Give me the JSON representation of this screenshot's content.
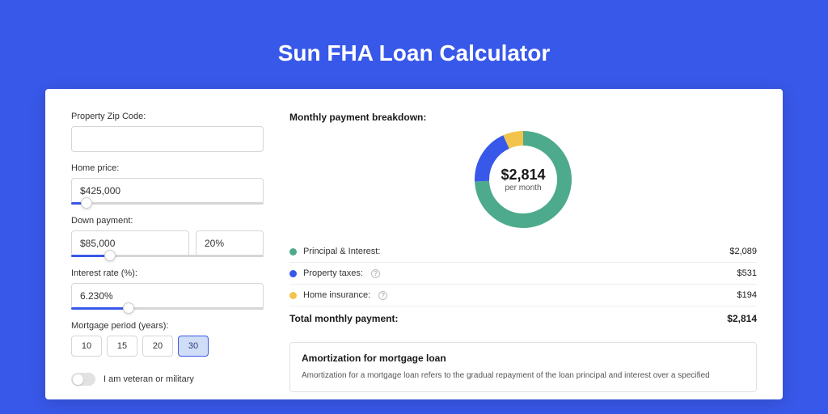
{
  "page_title": "Sun FHA Loan Calculator",
  "colors": {
    "page_bg": "#3858e9",
    "card_bg": "#ffffff",
    "accent": "#3858e9",
    "text_primary": "#1a1a1a",
    "text_secondary": "#555555",
    "border": "#d6d6d6"
  },
  "form": {
    "zip": {
      "label": "Property Zip Code:",
      "value": ""
    },
    "home_price": {
      "label": "Home price:",
      "value": "$425,000",
      "slider_pct": 8
    },
    "down_payment": {
      "label": "Down payment:",
      "amount": "$85,000",
      "percent": "20%",
      "slider_pct": 20
    },
    "interest": {
      "label": "Interest rate (%):",
      "value": "6.230%",
      "slider_pct": 30
    },
    "period": {
      "label": "Mortgage period (years):",
      "options": [
        "10",
        "15",
        "20",
        "30"
      ],
      "selected": "30"
    },
    "veteran": {
      "label": "I am veteran or military",
      "checked": false
    }
  },
  "breakdown": {
    "title": "Monthly payment breakdown:",
    "donut": {
      "center_amount": "$2,814",
      "center_sub": "per month",
      "size": 120,
      "thickness": 18,
      "slices": [
        {
          "label": "Principal & Interest:",
          "value": "$2,089",
          "color": "#4daa8c",
          "pct": 74.2,
          "has_info": false
        },
        {
          "label": "Property taxes:",
          "value": "$531",
          "color": "#3858e9",
          "pct": 18.9,
          "has_info": true
        },
        {
          "label": "Home insurance:",
          "value": "$194",
          "color": "#f3c44b",
          "pct": 6.9,
          "has_info": true
        }
      ]
    },
    "total": {
      "label": "Total monthly payment:",
      "value": "$2,814"
    }
  },
  "amortization": {
    "title": "Amortization for mortgage loan",
    "text": "Amortization for a mortgage loan refers to the gradual repayment of the loan principal and interest over a specified"
  }
}
